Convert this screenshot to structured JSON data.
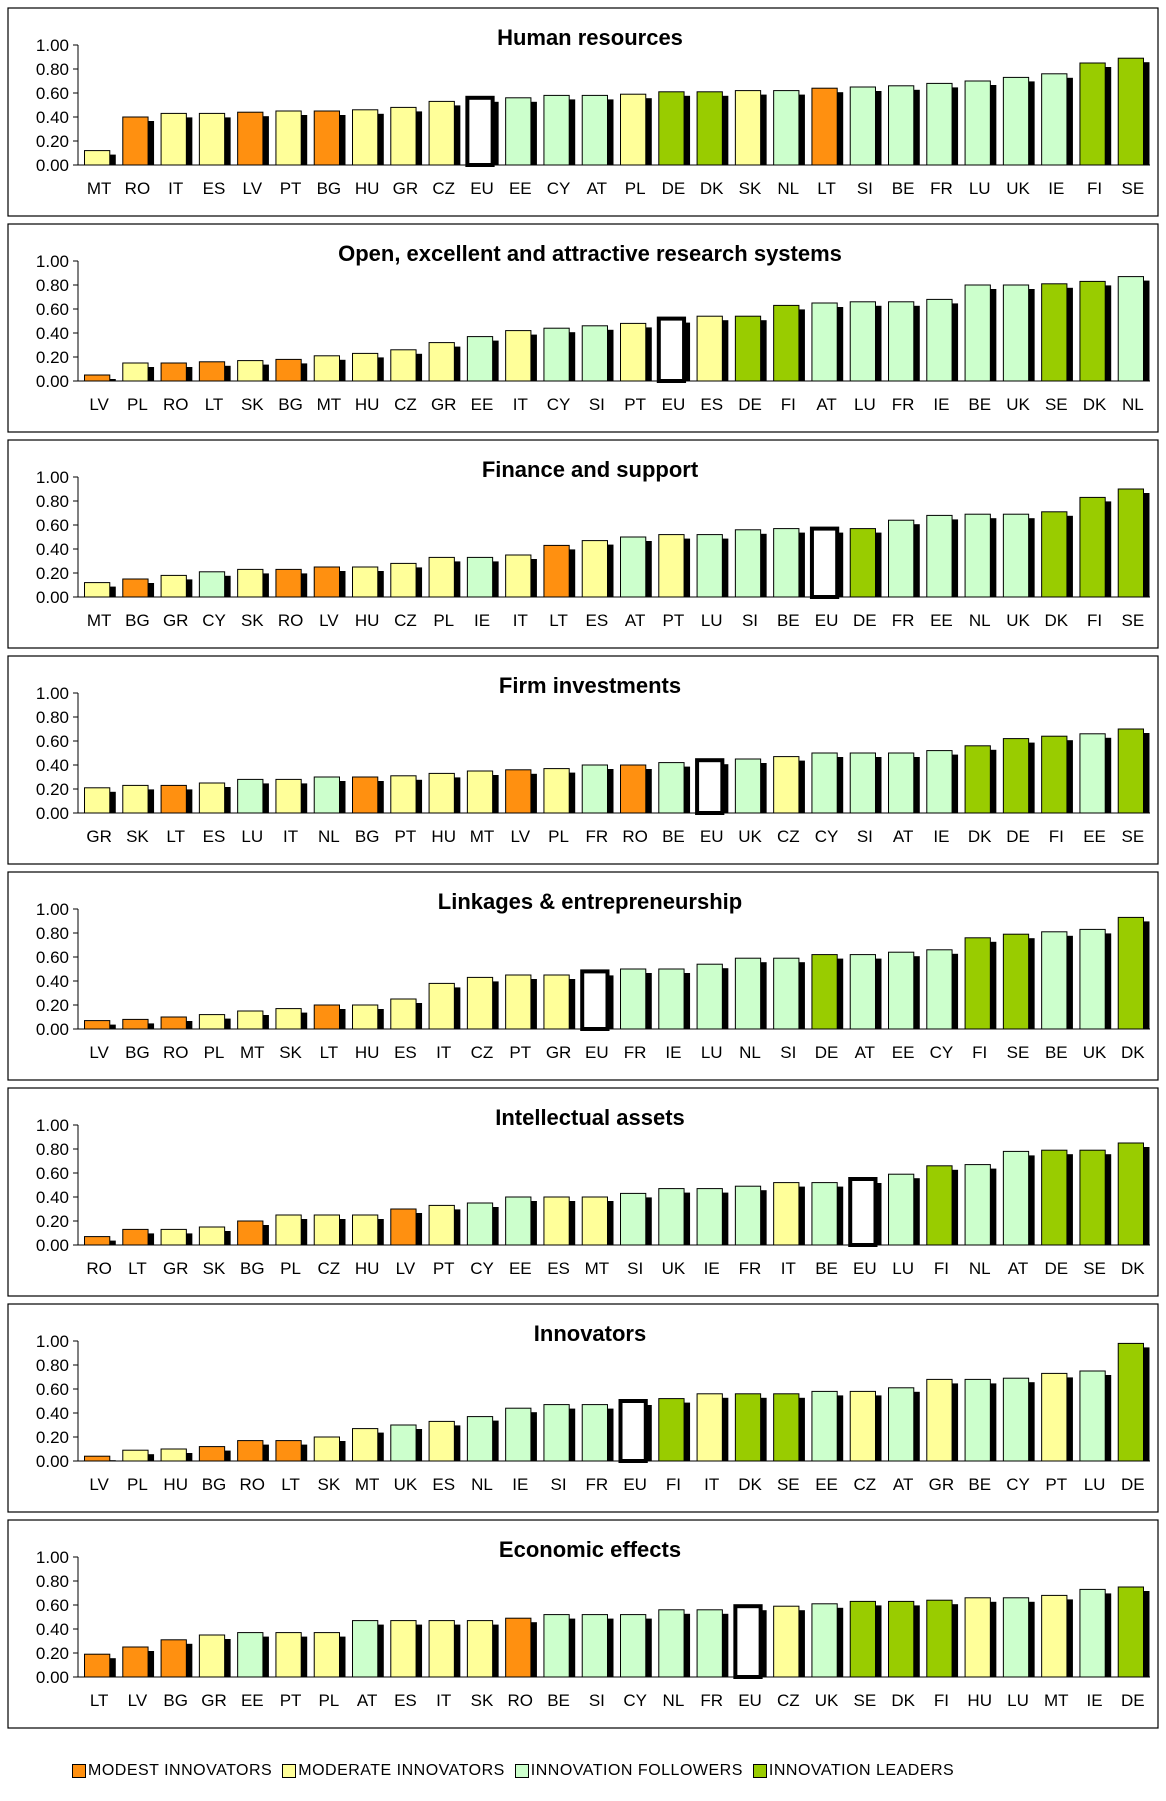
{
  "colors": {
    "modest": "#ff9010",
    "moderate": "#ffff99",
    "follower": "#ccffcc",
    "leader": "#99cc00",
    "eu": "#ffffff",
    "shadow": "#000000"
  },
  "legend": [
    {
      "key": "modest",
      "label": "MODEST INNOVATORS"
    },
    {
      "key": "moderate",
      "label": "MODERATE INNOVATORS"
    },
    {
      "key": "follower",
      "label": "INNOVATION FOLLOWERS"
    },
    {
      "key": "leader",
      "label": "INNOVATION LEADERS"
    }
  ],
  "chart_data": [
    {
      "type": "bar",
      "title": "Human resources",
      "ylim": [
        0,
        1
      ],
      "yticks": [
        "0.00",
        "0.20",
        "0.40",
        "0.60",
        "0.80",
        "1.00"
      ],
      "grid": false,
      "categories": [
        "MT",
        "RO",
        "IT",
        "ES",
        "LV",
        "PT",
        "BG",
        "HU",
        "GR",
        "CZ",
        "EU",
        "EE",
        "CY",
        "AT",
        "PL",
        "DE",
        "DK",
        "SK",
        "NL",
        "LT",
        "SI",
        "BE",
        "FR",
        "LU",
        "UK",
        "IE",
        "FI",
        "SE"
      ],
      "groups": [
        "moderate",
        "modest",
        "moderate",
        "moderate",
        "modest",
        "moderate",
        "modest",
        "moderate",
        "moderate",
        "moderate",
        "eu",
        "follower",
        "follower",
        "follower",
        "moderate",
        "leader",
        "leader",
        "moderate",
        "follower",
        "modest",
        "follower",
        "follower",
        "follower",
        "follower",
        "follower",
        "follower",
        "leader",
        "leader"
      ],
      "values": [
        0.12,
        0.4,
        0.43,
        0.43,
        0.44,
        0.45,
        0.45,
        0.46,
        0.48,
        0.53,
        0.56,
        0.56,
        0.58,
        0.58,
        0.59,
        0.61,
        0.61,
        0.62,
        0.62,
        0.64,
        0.65,
        0.66,
        0.68,
        0.7,
        0.73,
        0.76,
        0.85,
        0.89
      ]
    },
    {
      "type": "bar",
      "title": "Open, excellent and attractive research systems",
      "ylim": [
        0,
        1
      ],
      "yticks": [
        "0.00",
        "0.20",
        "0.40",
        "0.60",
        "0.80",
        "1.00"
      ],
      "grid": false,
      "categories": [
        "LV",
        "PL",
        "RO",
        "LT",
        "SK",
        "BG",
        "MT",
        "HU",
        "CZ",
        "GR",
        "EE",
        "IT",
        "CY",
        "SI",
        "PT",
        "EU",
        "ES",
        "DE",
        "FI",
        "AT",
        "LU",
        "FR",
        "IE",
        "BE",
        "UK",
        "SE",
        "DK",
        "NL"
      ],
      "groups": [
        "modest",
        "moderate",
        "modest",
        "modest",
        "moderate",
        "modest",
        "moderate",
        "moderate",
        "moderate",
        "moderate",
        "follower",
        "moderate",
        "follower",
        "follower",
        "moderate",
        "eu",
        "moderate",
        "leader",
        "leader",
        "follower",
        "follower",
        "follower",
        "follower",
        "follower",
        "follower",
        "leader",
        "leader",
        "follower"
      ],
      "values": [
        0.05,
        0.15,
        0.15,
        0.16,
        0.17,
        0.18,
        0.21,
        0.23,
        0.26,
        0.32,
        0.37,
        0.42,
        0.44,
        0.46,
        0.48,
        0.52,
        0.54,
        0.54,
        0.63,
        0.65,
        0.66,
        0.66,
        0.68,
        0.8,
        0.8,
        0.81,
        0.83,
        0.87
      ]
    },
    {
      "type": "bar",
      "title": "Finance and support",
      "ylim": [
        0,
        1
      ],
      "yticks": [
        "0.00",
        "0.20",
        "0.40",
        "0.60",
        "0.80",
        "1.00"
      ],
      "grid": false,
      "categories": [
        "MT",
        "BG",
        "GR",
        "CY",
        "SK",
        "RO",
        "LV",
        "HU",
        "CZ",
        "PL",
        "IE",
        "IT",
        "LT",
        "ES",
        "AT",
        "PT",
        "LU",
        "SI",
        "BE",
        "EU",
        "DE",
        "FR",
        "EE",
        "NL",
        "UK",
        "DK",
        "FI",
        "SE"
      ],
      "groups": [
        "moderate",
        "modest",
        "moderate",
        "follower",
        "moderate",
        "modest",
        "modest",
        "moderate",
        "moderate",
        "moderate",
        "follower",
        "moderate",
        "modest",
        "moderate",
        "follower",
        "moderate",
        "follower",
        "follower",
        "follower",
        "eu",
        "leader",
        "follower",
        "follower",
        "follower",
        "follower",
        "leader",
        "leader",
        "leader"
      ],
      "values": [
        0.12,
        0.15,
        0.18,
        0.21,
        0.23,
        0.23,
        0.25,
        0.25,
        0.28,
        0.33,
        0.33,
        0.35,
        0.43,
        0.47,
        0.5,
        0.52,
        0.52,
        0.56,
        0.57,
        0.57,
        0.57,
        0.64,
        0.68,
        0.69,
        0.69,
        0.71,
        0.83,
        0.9
      ]
    },
    {
      "type": "bar",
      "title": "Firm investments",
      "ylim": [
        0,
        1
      ],
      "yticks": [
        "0.00",
        "0.20",
        "0.40",
        "0.60",
        "0.80",
        "1.00"
      ],
      "grid": false,
      "categories": [
        "GR",
        "SK",
        "LT",
        "ES",
        "LU",
        "IT",
        "NL",
        "BG",
        "PT",
        "HU",
        "MT",
        "LV",
        "PL",
        "FR",
        "RO",
        "BE",
        "EU",
        "UK",
        "CZ",
        "CY",
        "SI",
        "AT",
        "IE",
        "DK",
        "DE",
        "FI",
        "EE",
        "SE"
      ],
      "groups": [
        "moderate",
        "moderate",
        "modest",
        "moderate",
        "follower",
        "moderate",
        "follower",
        "modest",
        "moderate",
        "moderate",
        "moderate",
        "modest",
        "moderate",
        "follower",
        "modest",
        "follower",
        "eu",
        "follower",
        "moderate",
        "follower",
        "follower",
        "follower",
        "follower",
        "leader",
        "leader",
        "leader",
        "follower",
        "leader"
      ],
      "values": [
        0.21,
        0.23,
        0.23,
        0.25,
        0.28,
        0.28,
        0.3,
        0.3,
        0.31,
        0.33,
        0.35,
        0.36,
        0.37,
        0.4,
        0.4,
        0.42,
        0.44,
        0.45,
        0.47,
        0.5,
        0.5,
        0.5,
        0.52,
        0.56,
        0.62,
        0.64,
        0.66,
        0.7
      ]
    },
    {
      "type": "bar",
      "title": "Linkages & entrepreneurship",
      "ylim": [
        0,
        1
      ],
      "yticks": [
        "0.00",
        "0.20",
        "0.40",
        "0.60",
        "0.80",
        "1.00"
      ],
      "grid": false,
      "categories": [
        "LV",
        "BG",
        "RO",
        "PL",
        "MT",
        "SK",
        "LT",
        "HU",
        "ES",
        "IT",
        "CZ",
        "PT",
        "GR",
        "EU",
        "FR",
        "IE",
        "LU",
        "NL",
        "SI",
        "DE",
        "AT",
        "EE",
        "CY",
        "FI",
        "SE",
        "BE",
        "UK",
        "DK"
      ],
      "groups": [
        "modest",
        "modest",
        "modest",
        "moderate",
        "moderate",
        "moderate",
        "modest",
        "moderate",
        "moderate",
        "moderate",
        "moderate",
        "moderate",
        "moderate",
        "eu",
        "follower",
        "follower",
        "follower",
        "follower",
        "follower",
        "leader",
        "follower",
        "follower",
        "follower",
        "leader",
        "leader",
        "follower",
        "follower",
        "leader"
      ],
      "values": [
        0.07,
        0.08,
        0.1,
        0.12,
        0.15,
        0.17,
        0.2,
        0.2,
        0.25,
        0.38,
        0.43,
        0.45,
        0.45,
        0.48,
        0.5,
        0.5,
        0.54,
        0.59,
        0.59,
        0.62,
        0.62,
        0.64,
        0.66,
        0.76,
        0.79,
        0.81,
        0.83,
        0.93
      ]
    },
    {
      "type": "bar",
      "title": "Intellectual assets",
      "ylim": [
        0,
        1
      ],
      "yticks": [
        "0.00",
        "0.20",
        "0.40",
        "0.60",
        "0.80",
        "1.00"
      ],
      "grid": false,
      "categories": [
        "RO",
        "LT",
        "GR",
        "SK",
        "BG",
        "PL",
        "CZ",
        "HU",
        "LV",
        "PT",
        "CY",
        "EE",
        "ES",
        "MT",
        "SI",
        "UK",
        "IE",
        "FR",
        "IT",
        "BE",
        "EU",
        "LU",
        "FI",
        "NL",
        "AT",
        "DE",
        "SE",
        "DK"
      ],
      "groups": [
        "modest",
        "modest",
        "moderate",
        "moderate",
        "modest",
        "moderate",
        "moderate",
        "moderate",
        "modest",
        "moderate",
        "follower",
        "follower",
        "moderate",
        "moderate",
        "follower",
        "follower",
        "follower",
        "follower",
        "moderate",
        "follower",
        "eu",
        "follower",
        "leader",
        "follower",
        "follower",
        "leader",
        "leader",
        "leader"
      ],
      "values": [
        0.07,
        0.13,
        0.13,
        0.15,
        0.2,
        0.25,
        0.25,
        0.25,
        0.3,
        0.33,
        0.35,
        0.4,
        0.4,
        0.4,
        0.43,
        0.47,
        0.47,
        0.49,
        0.52,
        0.52,
        0.55,
        0.59,
        0.66,
        0.67,
        0.78,
        0.79,
        0.79,
        0.85
      ]
    },
    {
      "type": "bar",
      "title": "Innovators",
      "ylim": [
        0,
        1
      ],
      "yticks": [
        "0.00",
        "0.20",
        "0.40",
        "0.60",
        "0.80",
        "1.00"
      ],
      "grid": false,
      "categories": [
        "LV",
        "PL",
        "HU",
        "BG",
        "RO",
        "LT",
        "SK",
        "MT",
        "UK",
        "ES",
        "NL",
        "IE",
        "SI",
        "FR",
        "EU",
        "FI",
        "IT",
        "DK",
        "SE",
        "EE",
        "CZ",
        "AT",
        "GR",
        "BE",
        "CY",
        "PT",
        "LU",
        "DE"
      ],
      "groups": [
        "modest",
        "moderate",
        "moderate",
        "modest",
        "modest",
        "modest",
        "moderate",
        "moderate",
        "follower",
        "moderate",
        "follower",
        "follower",
        "follower",
        "follower",
        "eu",
        "leader",
        "moderate",
        "leader",
        "leader",
        "follower",
        "moderate",
        "follower",
        "moderate",
        "follower",
        "follower",
        "moderate",
        "follower",
        "leader"
      ],
      "values": [
        0.04,
        0.09,
        0.1,
        0.12,
        0.17,
        0.17,
        0.2,
        0.27,
        0.3,
        0.33,
        0.37,
        0.44,
        0.47,
        0.47,
        0.5,
        0.52,
        0.56,
        0.56,
        0.56,
        0.58,
        0.58,
        0.61,
        0.68,
        0.68,
        0.69,
        0.73,
        0.75,
        0.98
      ]
    },
    {
      "type": "bar",
      "title": "Economic effects",
      "ylim": [
        0,
        1
      ],
      "yticks": [
        "0.00",
        "0.20",
        "0.40",
        "0.60",
        "0.80",
        "1.00"
      ],
      "grid": false,
      "categories": [
        "LT",
        "LV",
        "BG",
        "GR",
        "EE",
        "PT",
        "PL",
        "AT",
        "ES",
        "IT",
        "SK",
        "RO",
        "BE",
        "SI",
        "CY",
        "NL",
        "FR",
        "EU",
        "CZ",
        "UK",
        "SE",
        "DK",
        "FI",
        "HU",
        "LU",
        "MT",
        "IE",
        "DE"
      ],
      "groups": [
        "modest",
        "modest",
        "modest",
        "moderate",
        "follower",
        "moderate",
        "moderate",
        "follower",
        "moderate",
        "moderate",
        "moderate",
        "modest",
        "follower",
        "follower",
        "follower",
        "follower",
        "follower",
        "eu",
        "moderate",
        "follower",
        "leader",
        "leader",
        "leader",
        "moderate",
        "follower",
        "moderate",
        "follower",
        "leader"
      ],
      "values": [
        0.19,
        0.25,
        0.31,
        0.35,
        0.37,
        0.37,
        0.37,
        0.47,
        0.47,
        0.47,
        0.47,
        0.49,
        0.52,
        0.52,
        0.52,
        0.56,
        0.56,
        0.59,
        0.59,
        0.61,
        0.63,
        0.63,
        0.64,
        0.66,
        0.66,
        0.68,
        0.73,
        0.75
      ]
    }
  ]
}
